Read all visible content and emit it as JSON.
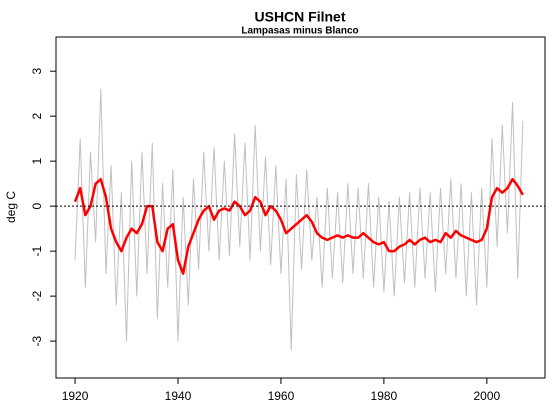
{
  "chart_data": {
    "type": "line",
    "title": "USHCN Filnet",
    "subtitle": "Lampasas minus Blanco",
    "ylabel": "deg C",
    "x": [
      1920,
      1921,
      1922,
      1923,
      1924,
      1925,
      1926,
      1927,
      1928,
      1929,
      1930,
      1931,
      1932,
      1933,
      1934,
      1935,
      1936,
      1937,
      1938,
      1939,
      1940,
      1941,
      1942,
      1943,
      1944,
      1945,
      1946,
      1947,
      1948,
      1949,
      1950,
      1951,
      1952,
      1953,
      1954,
      1955,
      1956,
      1957,
      1958,
      1959,
      1960,
      1961,
      1962,
      1963,
      1964,
      1965,
      1966,
      1967,
      1968,
      1969,
      1970,
      1971,
      1972,
      1973,
      1974,
      1975,
      1976,
      1977,
      1978,
      1979,
      1980,
      1981,
      1982,
      1983,
      1984,
      1985,
      1986,
      1987,
      1988,
      1989,
      1990,
      1991,
      1992,
      1993,
      1994,
      1995,
      1996,
      1997,
      1998,
      1999,
      2000,
      2001,
      2002,
      2003,
      2004,
      2005,
      2006,
      2007
    ],
    "series": [
      {
        "color": "#c0c0c0",
        "width": 1,
        "values": [
          -1.2,
          1.5,
          -1.8,
          1.2,
          -0.8,
          2.6,
          -1.5,
          0.9,
          -2.2,
          0.3,
          -3.0,
          1.0,
          -2.0,
          1.2,
          -1.5,
          1.4,
          -2.5,
          0.5,
          -1.8,
          0.8,
          -3.0,
          0.2,
          -2.2,
          0.6,
          -1.4,
          1.2,
          -1.0,
          1.3,
          -1.2,
          1.0,
          -1.1,
          1.6,
          -0.9,
          1.4,
          -1.2,
          1.8,
          -1.0,
          1.1,
          -1.3,
          0.9,
          -1.5,
          0.6,
          -3.2,
          0.7,
          -1.4,
          0.8,
          -1.2,
          0.2,
          -1.8,
          0.4,
          -1.6,
          0.3,
          -1.7,
          0.5,
          -1.5,
          0.4,
          -1.6,
          0.5,
          -1.8,
          0.2,
          -1.9,
          0.1,
          -2.0,
          0.2,
          -1.7,
          0.3,
          -1.8,
          0.4,
          -1.6,
          0.3,
          -1.9,
          0.4,
          -1.5,
          0.6,
          -1.6,
          0.5,
          -2.0,
          0.3,
          -2.2,
          0.4,
          -1.8,
          1.5,
          -0.9,
          1.8,
          -0.6,
          2.3,
          -1.6,
          1.9
        ]
      },
      {
        "color": "#ff0000",
        "width": 2.5,
        "values": [
          0.1,
          0.4,
          -0.2,
          0.0,
          0.5,
          0.6,
          0.2,
          -0.5,
          -0.8,
          -1.0,
          -0.7,
          -0.5,
          -0.6,
          -0.4,
          0.0,
          0.0,
          -0.8,
          -1.0,
          -0.5,
          -0.4,
          -1.2,
          -1.5,
          -0.9,
          -0.6,
          -0.3,
          -0.1,
          0.0,
          -0.3,
          -0.1,
          -0.05,
          -0.1,
          0.1,
          0.0,
          -0.2,
          -0.1,
          0.2,
          0.1,
          -0.2,
          0.0,
          -0.1,
          -0.3,
          -0.6,
          -0.5,
          -0.4,
          -0.3,
          -0.2,
          -0.35,
          -0.6,
          -0.7,
          -0.75,
          -0.7,
          -0.65,
          -0.7,
          -0.65,
          -0.7,
          -0.7,
          -0.6,
          -0.7,
          -0.8,
          -0.85,
          -0.8,
          -1.0,
          -1.0,
          -0.9,
          -0.85,
          -0.75,
          -0.85,
          -0.75,
          -0.7,
          -0.8,
          -0.75,
          -0.8,
          -0.6,
          -0.7,
          -0.55,
          -0.65,
          -0.7,
          -0.75,
          -0.8,
          -0.75,
          -0.5,
          0.2,
          0.4,
          0.3,
          0.4,
          0.6,
          0.45,
          0.25
        ]
      }
    ],
    "hline": 0,
    "xlim": [
      1916.3,
      2011.3
    ],
    "ylim": [
      -3.82,
      3.76
    ],
    "xticks": [
      1920,
      1940,
      1960,
      1980,
      2000
    ],
    "yticks": [
      -3,
      -2,
      -1,
      0,
      1,
      2,
      3
    ]
  }
}
